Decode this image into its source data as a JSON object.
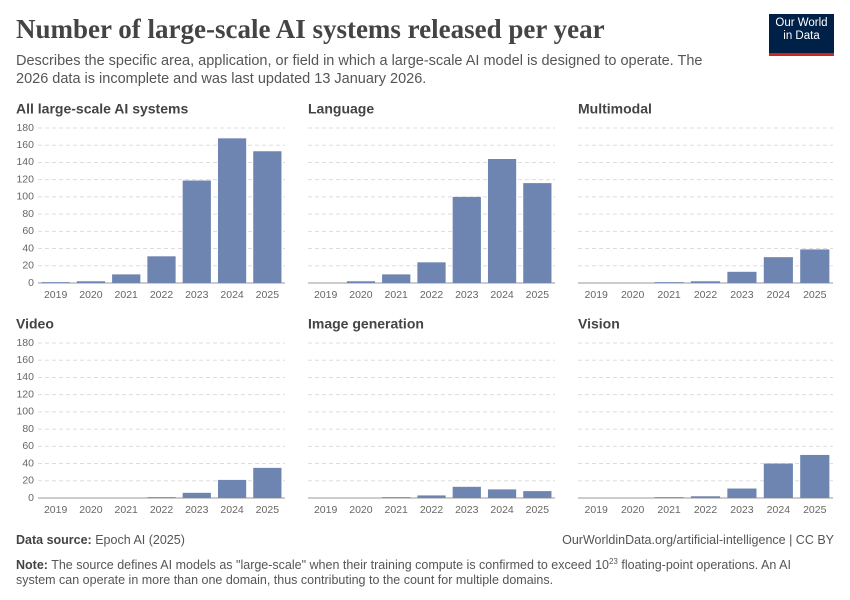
{
  "header": {
    "title": "Number of large-scale AI systems released per year",
    "subtitle": "Describes the specific area, application, or field in which a large-scale AI model is designed to operate. The 2026 data is incomplete and was last updated 13 January 2026.",
    "logo": [
      "Our World",
      "in Data"
    ]
  },
  "chart_data": [
    {
      "type": "bar",
      "title": "All large-scale AI systems",
      "categories": [
        "2019",
        "2020",
        "2021",
        "2022",
        "2023",
        "2024",
        "2025"
      ],
      "values": [
        1,
        2,
        10,
        31,
        119,
        168,
        153
      ],
      "color": "#6d85b0",
      "ylim": [
        0,
        180
      ],
      "yticks": [
        0,
        20,
        40,
        60,
        80,
        100,
        120,
        140,
        160,
        180
      ],
      "ytick_labels": true,
      "grid": true
    },
    {
      "type": "bar",
      "title": "Language",
      "categories": [
        "2019",
        "2020",
        "2021",
        "2022",
        "2023",
        "2024",
        "2025"
      ],
      "values": [
        0,
        2,
        10,
        24,
        100,
        144,
        116
      ],
      "color": "#6d85b0",
      "ylim": [
        0,
        180
      ],
      "yticks": [
        0,
        20,
        40,
        60,
        80,
        100,
        120,
        140,
        160,
        180
      ],
      "ytick_labels": false,
      "grid": true
    },
    {
      "type": "bar",
      "title": "Multimodal",
      "categories": [
        "2019",
        "2020",
        "2021",
        "2022",
        "2023",
        "2024",
        "2025"
      ],
      "values": [
        0,
        0,
        1,
        2,
        13,
        30,
        39
      ],
      "color": "#6d85b0",
      "ylim": [
        0,
        180
      ],
      "yticks": [
        0,
        20,
        40,
        60,
        80,
        100,
        120,
        140,
        160,
        180
      ],
      "ytick_labels": false,
      "grid": true
    },
    {
      "type": "bar",
      "title": "Video",
      "categories": [
        "2019",
        "2020",
        "2021",
        "2022",
        "2023",
        "2024",
        "2025"
      ],
      "values": [
        0,
        0,
        0,
        1,
        6,
        21,
        35
      ],
      "color": "#6d85b0",
      "ylim": [
        0,
        180
      ],
      "yticks": [
        0,
        20,
        40,
        60,
        80,
        100,
        120,
        140,
        160,
        180
      ],
      "ytick_labels": true,
      "grid": true
    },
    {
      "type": "bar",
      "title": "Image generation",
      "categories": [
        "2019",
        "2020",
        "2021",
        "2022",
        "2023",
        "2024",
        "2025"
      ],
      "values": [
        0,
        0,
        1,
        3,
        13,
        10,
        8
      ],
      "color": "#6d85b0",
      "ylim": [
        0,
        180
      ],
      "yticks": [
        0,
        20,
        40,
        60,
        80,
        100,
        120,
        140,
        160,
        180
      ],
      "ytick_labels": false,
      "grid": true
    },
    {
      "type": "bar",
      "title": "Vision",
      "categories": [
        "2019",
        "2020",
        "2021",
        "2022",
        "2023",
        "2024",
        "2025"
      ],
      "values": [
        0,
        0,
        1,
        2,
        11,
        40,
        50
      ],
      "color": "#6d85b0",
      "ylim": [
        0,
        180
      ],
      "yticks": [
        0,
        20,
        40,
        60,
        80,
        100,
        120,
        140,
        160,
        180
      ],
      "ytick_labels": false,
      "grid": true
    }
  ],
  "footer": {
    "source_label": "Data source:",
    "source": "Epoch AI (2025)",
    "url": "OurWorldinData.org/artificial-intelligence | CC BY",
    "note_label": "Note:",
    "note_before": "The source defines AI models as \"large-scale\" when their training compute is confirmed to exceed 10",
    "note_exponent": "23",
    "note_after": " floating-point operations. An AI system can operate in more than one domain, thus contributing to the count for multiple domains."
  }
}
